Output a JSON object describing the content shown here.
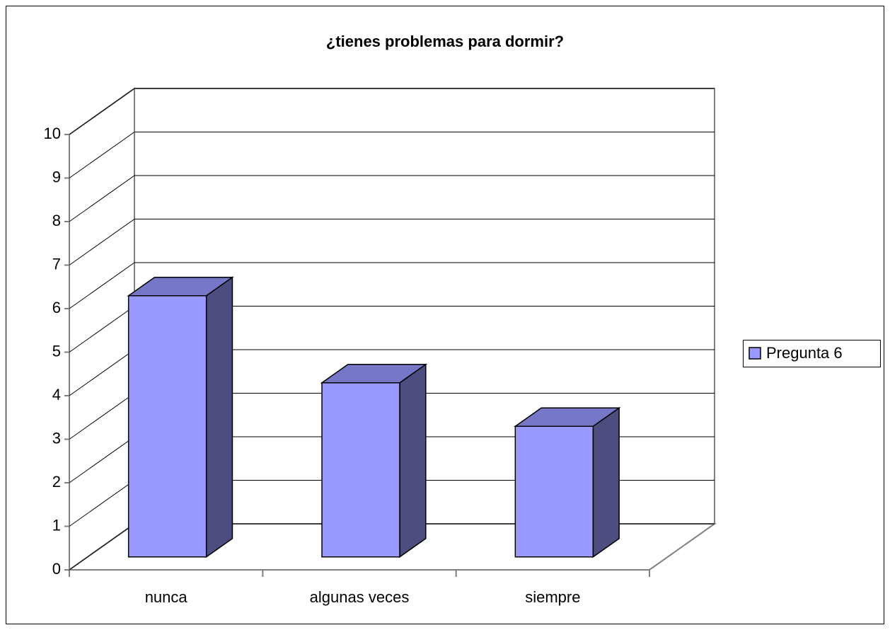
{
  "chart_data": {
    "type": "bar3d",
    "title": "¿tienes problemas para dormir?",
    "categories": [
      "nunca",
      "algunas veces",
      "siempre"
    ],
    "series": [
      {
        "name": "Pregunta 6",
        "color": "#9999ff",
        "values": [
          6,
          4,
          3
        ]
      }
    ],
    "ylim": [
      0,
      10
    ],
    "yticks": [
      0,
      1,
      2,
      3,
      4,
      5,
      6,
      7,
      8,
      9,
      10
    ],
    "grid": true,
    "legend": "right"
  }
}
